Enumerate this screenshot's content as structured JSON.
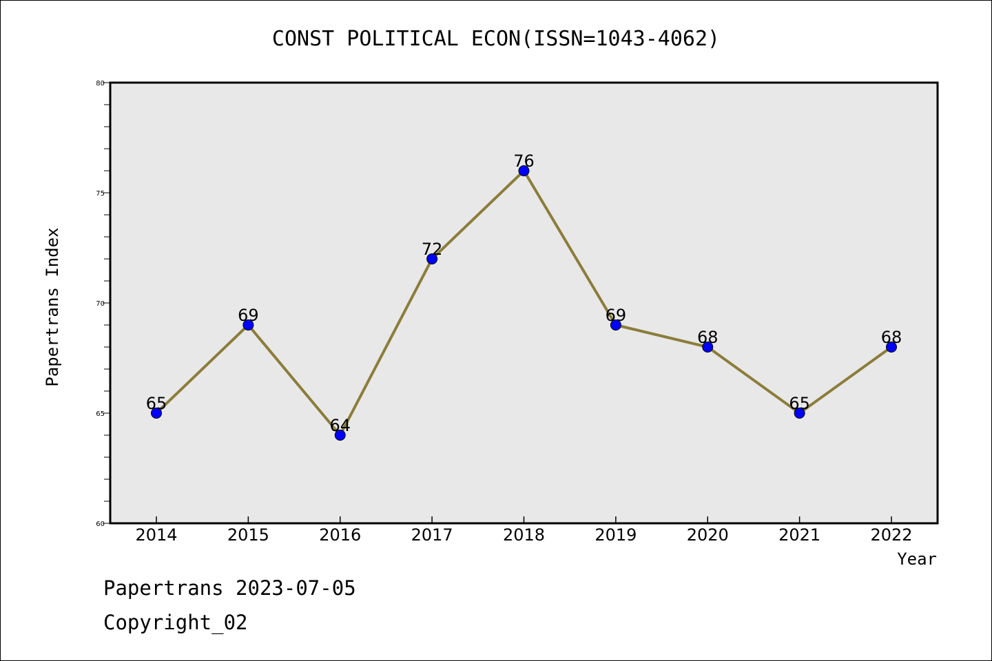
{
  "chart_data": {
    "type": "line",
    "title": "CONST POLITICAL ECON(ISSN=1043-4062)",
    "xlabel": "Year",
    "ylabel": "Papertrans Index",
    "categories": [
      "2014",
      "2015",
      "2016",
      "2017",
      "2018",
      "2019",
      "2020",
      "2021",
      "2022"
    ],
    "values": [
      65,
      69,
      64,
      72,
      76,
      69,
      68,
      65,
      68
    ],
    "ylim": [
      60,
      80
    ],
    "yticks": [
      60,
      65,
      70,
      75,
      80
    ],
    "grid": false,
    "colors": {
      "line": "#8B7D3A",
      "marker": "#0000FF",
      "plot_background": "#E8E8E8"
    }
  },
  "footer": {
    "line1": "Papertrans 2023-07-05",
    "line2": "Copyright_02"
  }
}
